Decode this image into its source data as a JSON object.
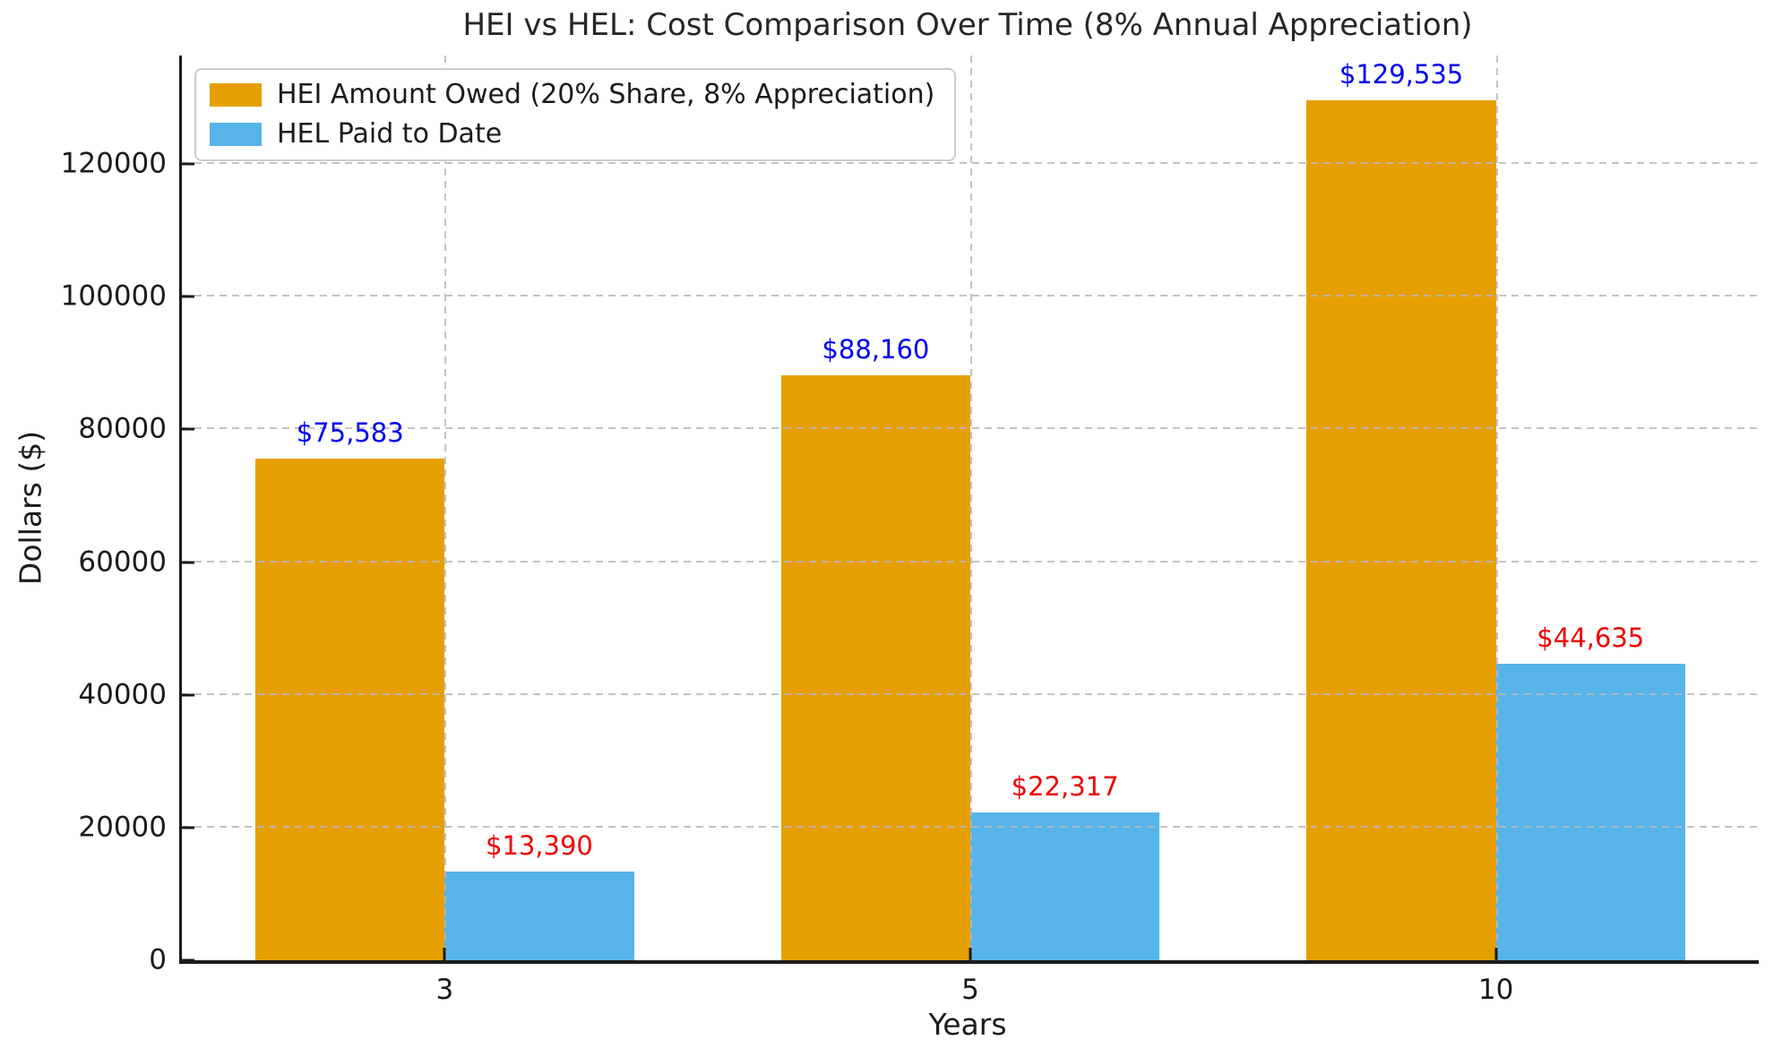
{
  "title": "HEI vs HEL: Cost Comparison Over Time (8% Annual Appreciation)",
  "chart_data": {
    "type": "bar",
    "title": "HEI vs HEL: Cost Comparison Over Time (8% Annual Appreciation)",
    "xlabel": "Years",
    "ylabel": "Dollars ($)",
    "categories": [
      "3",
      "5",
      "10"
    ],
    "series": [
      {
        "key": "hei",
        "name": "HEI Amount Owed (20% Share, 8% Appreciation)",
        "color": "#E69F00",
        "values": [
          75583,
          88160,
          129535
        ],
        "value_labels": [
          "$75,583",
          "$88,160",
          "$129,535"
        ],
        "value_label_color": "#0000ee"
      },
      {
        "key": "hel",
        "name": "HEL Paid to Date",
        "color": "#56B4E9",
        "values": [
          13390,
          22317,
          44635
        ],
        "value_labels": [
          "$13,390",
          "$22,317",
          "$44,635"
        ],
        "value_label_color": "#ee0000"
      }
    ],
    "yticks": [
      0,
      20000,
      40000,
      60000,
      80000,
      100000,
      120000
    ],
    "ytick_labels": [
      "0",
      "20000",
      "40000",
      "60000",
      "80000",
      "100000",
      "120000"
    ],
    "ylim": [
      0,
      136350
    ],
    "grid": "both, dashed, drawn over bars",
    "legend_position": "upper left"
  }
}
